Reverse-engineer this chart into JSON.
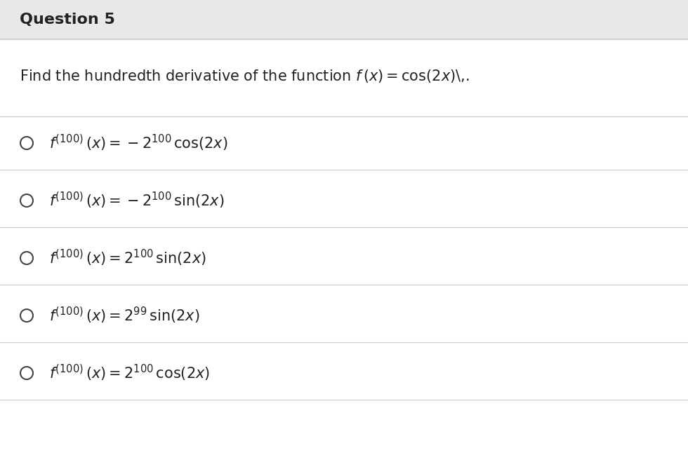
{
  "title": "Question 5",
  "question": "Find the hundredth derivative of the function $f\\,(x) = \\cos(2x)$\\,.",
  "options": [
    "$f^{(100)}\\,(x) = -2^{100}\\,\\cos(2x)$",
    "$f^{(100)}\\,(x) = -2^{100}\\,\\sin(2x)$",
    "$f^{(100)}\\,(x) = 2^{100}\\,\\sin(2x)$",
    "$f^{(100)}\\,(x) = 2^{99}\\,\\sin(2x)$",
    "$f^{(100)}\\,(x) = 2^{100}\\,\\cos(2x)$"
  ],
  "bg_color": "#f5f5f5",
  "header_bg": "#e8e8e8",
  "white_bg": "#ffffff",
  "line_color": "#cccccc",
  "title_fontsize": 16,
  "question_fontsize": 15,
  "option_fontsize": 15
}
